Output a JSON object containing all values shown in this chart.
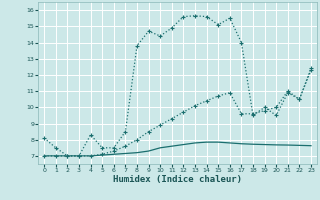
{
  "xlabel": "Humidex (Indice chaleur)",
  "xlim": [
    -0.5,
    23.5
  ],
  "ylim": [
    6.5,
    16.5
  ],
  "yticks": [
    7,
    8,
    9,
    10,
    11,
    12,
    13,
    14,
    15,
    16
  ],
  "xticks": [
    0,
    1,
    2,
    3,
    4,
    5,
    6,
    7,
    8,
    9,
    10,
    11,
    12,
    13,
    14,
    15,
    16,
    17,
    18,
    19,
    20,
    21,
    22,
    23
  ],
  "bg_color": "#cce8e8",
  "grid_color": "#b8d8d8",
  "line_color": "#1a6e6e",
  "series1_x": [
    0,
    1,
    2,
    3,
    4,
    5,
    6,
    7,
    8,
    9,
    10,
    11,
    12,
    13,
    14,
    15,
    16,
    17,
    18,
    19,
    20,
    21,
    22,
    23
  ],
  "series1_y": [
    8.1,
    7.5,
    7.0,
    7.0,
    8.3,
    7.5,
    7.5,
    8.5,
    13.8,
    14.7,
    14.4,
    14.9,
    15.6,
    15.65,
    15.6,
    15.1,
    15.5,
    14.0,
    9.5,
    10.0,
    9.5,
    10.9,
    10.5,
    12.4
  ],
  "series2_x": [
    0,
    1,
    2,
    3,
    4,
    5,
    6,
    7,
    8,
    9,
    10,
    11,
    12,
    13,
    14,
    15,
    16,
    17,
    18,
    19,
    20,
    21,
    22,
    23
  ],
  "series2_y": [
    7.0,
    7.0,
    7.0,
    7.0,
    7.0,
    7.1,
    7.3,
    7.6,
    8.0,
    8.5,
    8.9,
    9.3,
    9.7,
    10.1,
    10.4,
    10.7,
    10.9,
    9.6,
    9.6,
    9.8,
    10.0,
    11.0,
    10.5,
    12.3
  ],
  "series3_x": [
    0,
    1,
    2,
    3,
    4,
    5,
    6,
    7,
    8,
    9,
    10,
    11,
    12,
    13,
    14,
    15,
    16,
    17,
    18,
    19,
    20,
    21,
    22,
    23
  ],
  "series3_y": [
    7.0,
    7.0,
    7.0,
    7.0,
    7.0,
    7.05,
    7.1,
    7.15,
    7.2,
    7.3,
    7.5,
    7.6,
    7.7,
    7.8,
    7.85,
    7.85,
    7.8,
    7.75,
    7.72,
    7.7,
    7.68,
    7.67,
    7.65,
    7.63
  ]
}
